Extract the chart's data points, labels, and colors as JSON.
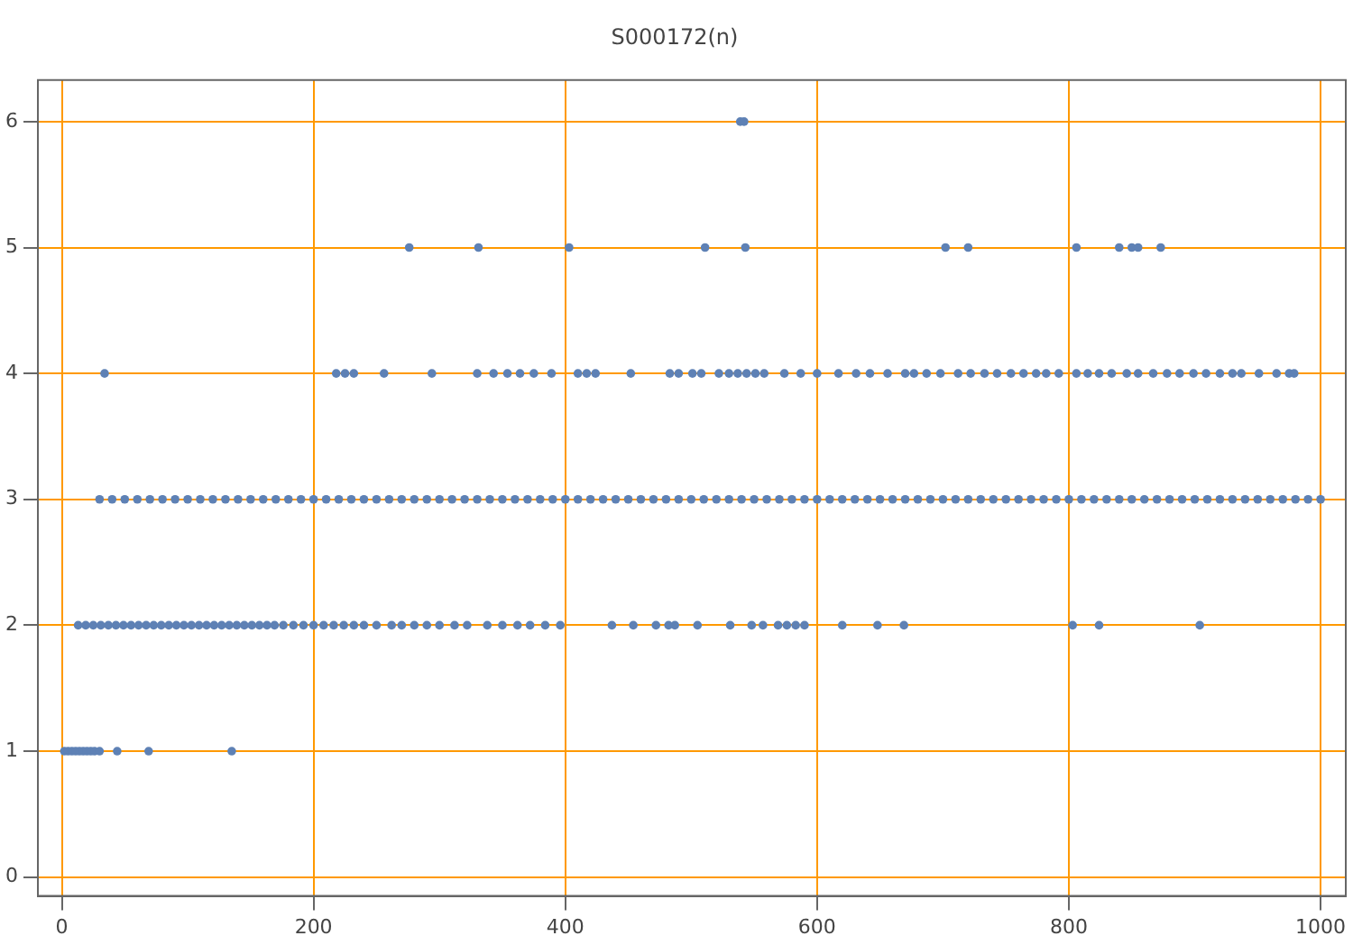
{
  "chart_data": {
    "type": "scatter",
    "title": "S000172(n)",
    "xlim": [
      -19,
      1020
    ],
    "ylim": [
      -0.15,
      6.33
    ],
    "xticks": [
      0,
      200,
      400,
      600,
      800,
      1000
    ],
    "yticks": [
      0,
      1,
      2,
      3,
      4,
      5,
      6
    ],
    "grid": true,
    "legend": false,
    "marker": "circle",
    "series": [
      {
        "color": "#5e81b5",
        "x": [
          2,
          5,
          8,
          11,
          14,
          17,
          20,
          23,
          26,
          30,
          44,
          69,
          135
        ],
        "values": [
          1,
          1,
          1,
          1,
          1,
          1,
          1,
          1,
          1,
          1,
          1,
          1,
          1
        ]
      },
      {
        "color": "#5e81b5",
        "x": [
          13,
          19,
          25,
          31,
          37,
          43,
          49,
          55,
          61,
          67,
          73,
          79,
          85,
          91,
          97,
          103,
          109,
          115,
          121,
          127,
          133,
          139,
          145,
          151,
          157,
          163,
          169,
          176,
          184,
          192,
          200,
          208,
          216,
          224,
          232,
          240,
          250,
          262,
          270,
          280,
          290,
          300,
          312,
          322,
          338,
          350,
          362,
          372,
          384,
          396,
          437,
          454,
          472,
          482,
          487,
          505,
          531,
          548,
          557,
          569,
          576,
          583,
          590,
          620,
          648,
          669,
          803,
          824,
          904
        ],
        "values": [
          2,
          2,
          2,
          2,
          2,
          2,
          2,
          2,
          2,
          2,
          2,
          2,
          2,
          2,
          2,
          2,
          2,
          2,
          2,
          2,
          2,
          2,
          2,
          2,
          2,
          2,
          2,
          2,
          2,
          2,
          2,
          2,
          2,
          2,
          2,
          2,
          2,
          2,
          2,
          2,
          2,
          2,
          2,
          2,
          2,
          2,
          2,
          2,
          2,
          2,
          2,
          2,
          2,
          2,
          2,
          2,
          2,
          2,
          2,
          2,
          2,
          2,
          2,
          2,
          2,
          2,
          2,
          2,
          2
        ]
      },
      {
        "color": "#5e81b5",
        "x": [
          30,
          40,
          50,
          60,
          70,
          80,
          90,
          100,
          110,
          120,
          130,
          140,
          150,
          160,
          170,
          180,
          190,
          200,
          210,
          220,
          230,
          240,
          250,
          260,
          270,
          280,
          290,
          300,
          310,
          320,
          330,
          340,
          350,
          360,
          370,
          380,
          390,
          400,
          410,
          420,
          430,
          440,
          450,
          460,
          470,
          480,
          490,
          500,
          510,
          520,
          530,
          540,
          550,
          560,
          570,
          580,
          590,
          600,
          610,
          620,
          630,
          640,
          650,
          660,
          670,
          680,
          690,
          700,
          710,
          720,
          730,
          740,
          750,
          760,
          770,
          780,
          790,
          800,
          810,
          820,
          830,
          840,
          850,
          860,
          870,
          880,
          890,
          900,
          910,
          920,
          930,
          940,
          950,
          960,
          970,
          980,
          990,
          1000
        ],
        "values": [
          3,
          3,
          3,
          3,
          3,
          3,
          3,
          3,
          3,
          3,
          3,
          3,
          3,
          3,
          3,
          3,
          3,
          3,
          3,
          3,
          3,
          3,
          3,
          3,
          3,
          3,
          3,
          3,
          3,
          3,
          3,
          3,
          3,
          3,
          3,
          3,
          3,
          3,
          3,
          3,
          3,
          3,
          3,
          3,
          3,
          3,
          3,
          3,
          3,
          3,
          3,
          3,
          3,
          3,
          3,
          3,
          3,
          3,
          3,
          3,
          3,
          3,
          3,
          3,
          3,
          3,
          3,
          3,
          3,
          3,
          3,
          3,
          3,
          3,
          3,
          3,
          3,
          3,
          3,
          3,
          3,
          3,
          3,
          3,
          3,
          3,
          3,
          3,
          3,
          3,
          3,
          3,
          3,
          3,
          3,
          3,
          3,
          3
        ]
      },
      {
        "color": "#5e81b5",
        "x": [
          34,
          218,
          225,
          232,
          256,
          294,
          330,
          343,
          354,
          364,
          375,
          389,
          410,
          417,
          424,
          452,
          483,
          490,
          501,
          508,
          522,
          530,
          537,
          544,
          551,
          558,
          574,
          587,
          600,
          617,
          631,
          642,
          656,
          670,
          677,
          687,
          698,
          712,
          722,
          733,
          743,
          754,
          764,
          774,
          782,
          792,
          806,
          815,
          824,
          834,
          846,
          855,
          867,
          878,
          888,
          899,
          909,
          920,
          930,
          937,
          951,
          965,
          975,
          979
        ],
        "values": [
          4,
          4,
          4,
          4,
          4,
          4,
          4,
          4,
          4,
          4,
          4,
          4,
          4,
          4,
          4,
          4,
          4,
          4,
          4,
          4,
          4,
          4,
          4,
          4,
          4,
          4,
          4,
          4,
          4,
          4,
          4,
          4,
          4,
          4,
          4,
          4,
          4,
          4,
          4,
          4,
          4,
          4,
          4,
          4,
          4,
          4,
          4,
          4,
          4,
          4,
          4,
          4,
          4,
          4,
          4,
          4,
          4,
          4,
          4,
          4,
          4,
          4,
          4,
          4
        ]
      },
      {
        "color": "#5e81b5",
        "x": [
          276,
          331,
          403,
          511,
          543,
          702,
          720,
          806,
          840,
          850,
          855,
          873
        ],
        "values": [
          5,
          5,
          5,
          5,
          5,
          5,
          5,
          5,
          5,
          5,
          5,
          5
        ]
      },
      {
        "color": "#5e81b5",
        "x": [
          539,
          542
        ],
        "values": [
          6,
          6
        ]
      }
    ]
  }
}
